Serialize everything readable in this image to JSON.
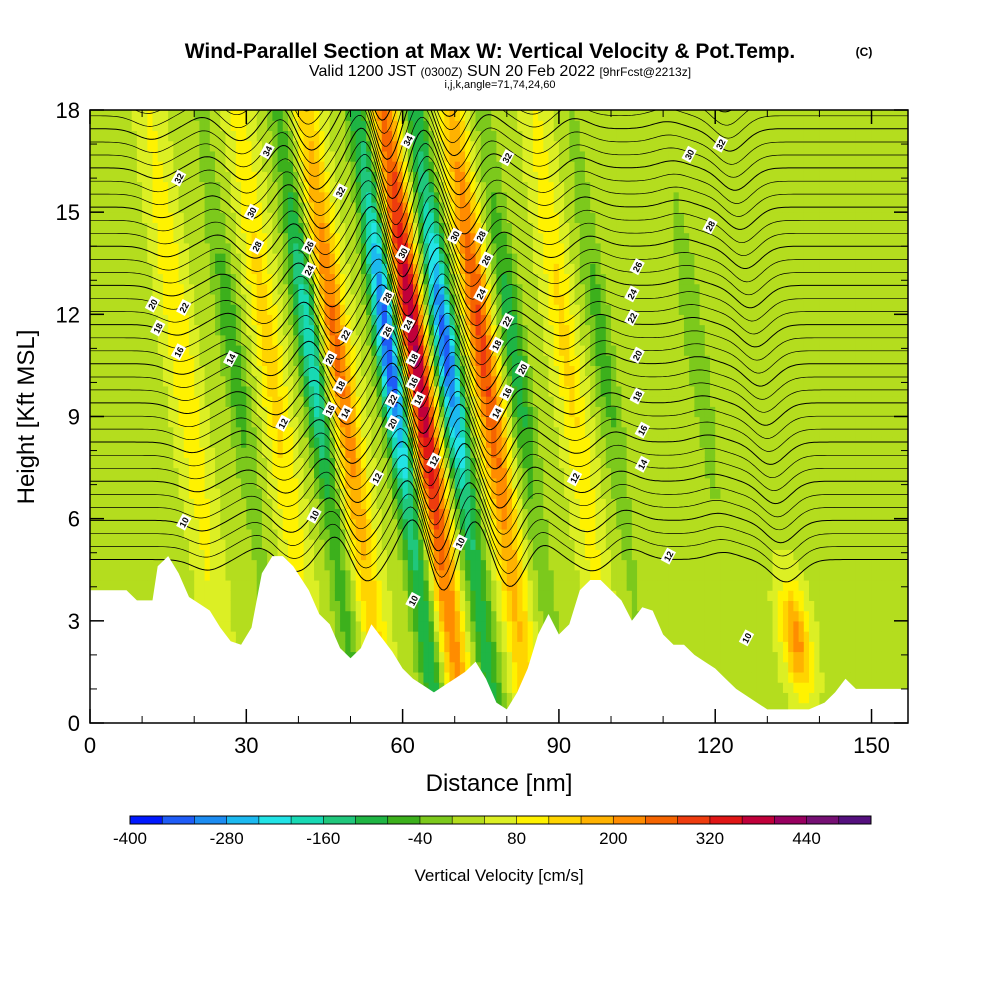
{
  "title": {
    "main": "Wind-Parallel Section at Max W: Vertical Velocity & Pot.Temp.",
    "mark": "(C)",
    "valid_a": "Valid 1200 JST",
    "valid_utc": "(0300Z)",
    "valid_b": "SUN 20 Feb 2022",
    "fcst": "[9hrFcst@2213z]",
    "params": "i,j,k,angle=71,74,24,60"
  },
  "chart_data": {
    "type": "heatmap",
    "x": {
      "label": "Distance [nm]",
      "range": [
        0,
        157
      ],
      "ticks": [
        0,
        30,
        60,
        90,
        120,
        150
      ]
    },
    "y": {
      "label": "Height [Kft MSL]",
      "range": [
        0,
        18
      ],
      "ticks": [
        0,
        3,
        6,
        9,
        12,
        15,
        18
      ]
    },
    "fill_variable": "Vertical Velocity [cm/s]",
    "colorbar": {
      "label": "Vertical Velocity [cm/s]",
      "tick_labels": [
        "-400",
        "-280",
        "-160",
        "-40",
        "80",
        "200",
        "320",
        "440"
      ],
      "tick_values": [
        -400,
        -280,
        -160,
        -40,
        80,
        200,
        320,
        440
      ],
      "levels": [
        -400,
        -360,
        -320,
        -280,
        -240,
        -200,
        -160,
        -120,
        -80,
        -40,
        0,
        40,
        80,
        120,
        160,
        200,
        240,
        280,
        320,
        360,
        400,
        440,
        480
      ],
      "colors": [
        "#0018ff",
        "#1f5cf7",
        "#1c8cf2",
        "#1cb9f0",
        "#22e3e6",
        "#18d9b4",
        "#20c77c",
        "#1fb544",
        "#3cb01c",
        "#7cc91c",
        "#b4dd1e",
        "#dcef24",
        "#fff200",
        "#ffd400",
        "#ffb200",
        "#ff8c00",
        "#f56400",
        "#ee3c0e",
        "#e01616",
        "#c0003a",
        "#980060",
        "#761074",
        "#55107e"
      ]
    },
    "contour_variable": "Potential temperature",
    "contour_levels": [
      10,
      12,
      14,
      16,
      18,
      20,
      22,
      24,
      26,
      28,
      30,
      32,
      34
    ],
    "updrafts": [
      {
        "x": 64,
        "peak": 380
      },
      {
        "x": 77,
        "peak": 260
      },
      {
        "x": 49,
        "peak": 220
      },
      {
        "x": 36,
        "peak": 110
      },
      {
        "x": 19,
        "peak": 90
      },
      {
        "x": 93,
        "peak": 100
      },
      {
        "x": 130,
        "peak": 190
      }
    ],
    "downdrafts": [
      {
        "x": 59,
        "peak": -400
      },
      {
        "x": 70,
        "peak": -370
      },
      {
        "x": 44,
        "peak": -230
      },
      {
        "x": 83,
        "peak": -140
      },
      {
        "x": 29,
        "peak": -100
      },
      {
        "x": 100,
        "peak": -90
      },
      {
        "x": 118,
        "peak": -60
      }
    ],
    "terrain_kft": [
      [
        0,
        3.9
      ],
      [
        7,
        3.9
      ],
      [
        9,
        3.6
      ],
      [
        12,
        3.6
      ],
      [
        13,
        4.6
      ],
      [
        15,
        4.9
      ],
      [
        17,
        4.4
      ],
      [
        19,
        3.7
      ],
      [
        21,
        3.5
      ],
      [
        23,
        3.3
      ],
      [
        25,
        2.8
      ],
      [
        27,
        2.4
      ],
      [
        29,
        2.3
      ],
      [
        31,
        2.8
      ],
      [
        33,
        4.4
      ],
      [
        35,
        4.9
      ],
      [
        37,
        4.9
      ],
      [
        39,
        4.6
      ],
      [
        42,
        3.9
      ],
      [
        44,
        3.2
      ],
      [
        46,
        2.9
      ],
      [
        48,
        2.2
      ],
      [
        50,
        1.9
      ],
      [
        52,
        2.2
      ],
      [
        54,
        2.9
      ],
      [
        56,
        2.5
      ],
      [
        58,
        2.1
      ],
      [
        60,
        1.6
      ],
      [
        62,
        1.3
      ],
      [
        64,
        1.1
      ],
      [
        66,
        0.9
      ],
      [
        68,
        1.1
      ],
      [
        70,
        1.3
      ],
      [
        72,
        1.5
      ],
      [
        74,
        1.8
      ],
      [
        76,
        1.3
      ],
      [
        78,
        0.6
      ],
      [
        80,
        0.4
      ],
      [
        82,
        0.9
      ],
      [
        84,
        1.6
      ],
      [
        86,
        2.6
      ],
      [
        88,
        3.2
      ],
      [
        90,
        2.6
      ],
      [
        92,
        2.9
      ],
      [
        94,
        3.9
      ],
      [
        96,
        4.2
      ],
      [
        98,
        4.2
      ],
      [
        100,
        3.9
      ],
      [
        102,
        3.6
      ],
      [
        104,
        3.0
      ],
      [
        106,
        3.4
      ],
      [
        108,
        3.3
      ],
      [
        110,
        2.6
      ],
      [
        112,
        2.3
      ],
      [
        114,
        2.3
      ],
      [
        116,
        2.0
      ],
      [
        118,
        1.8
      ],
      [
        120,
        1.6
      ],
      [
        122,
        1.3
      ],
      [
        124,
        1.0
      ],
      [
        126,
        0.8
      ],
      [
        128,
        0.6
      ],
      [
        130,
        0.4
      ],
      [
        134,
        0.4
      ],
      [
        138,
        0.4
      ],
      [
        141,
        0.6
      ],
      [
        143,
        0.9
      ],
      [
        145,
        1.3
      ],
      [
        147,
        1.0
      ],
      [
        150,
        1.0
      ],
      [
        157,
        1.0
      ]
    ],
    "contour_labels": [
      {
        "x": 34,
        "y": 16.8,
        "text": "34"
      },
      {
        "x": 17,
        "y": 16.0,
        "text": "32"
      },
      {
        "x": 31,
        "y": 15.0,
        "text": "30"
      },
      {
        "x": 32,
        "y": 14.0,
        "text": "28"
      },
      {
        "x": 42,
        "y": 14.0,
        "text": "26"
      },
      {
        "x": 42,
        "y": 13.3,
        "text": "24"
      },
      {
        "x": 48,
        "y": 15.6,
        "text": "32"
      },
      {
        "x": 12,
        "y": 12.3,
        "text": "20"
      },
      {
        "x": 18,
        "y": 12.2,
        "text": "22"
      },
      {
        "x": 13,
        "y": 11.6,
        "text": "18"
      },
      {
        "x": 17,
        "y": 10.9,
        "text": "16"
      },
      {
        "x": 27,
        "y": 10.7,
        "text": "14"
      },
      {
        "x": 46,
        "y": 10.7,
        "text": "20"
      },
      {
        "x": 49,
        "y": 11.4,
        "text": "22"
      },
      {
        "x": 48,
        "y": 9.9,
        "text": "18"
      },
      {
        "x": 46,
        "y": 9.2,
        "text": "16"
      },
      {
        "x": 49,
        "y": 9.1,
        "text": "14"
      },
      {
        "x": 37,
        "y": 8.8,
        "text": "12"
      },
      {
        "x": 43,
        "y": 6.1,
        "text": "10"
      },
      {
        "x": 18,
        "y": 5.9,
        "text": "10"
      },
      {
        "x": 61,
        "y": 17.1,
        "text": "34"
      },
      {
        "x": 60,
        "y": 13.8,
        "text": "30"
      },
      {
        "x": 57,
        "y": 12.5,
        "text": "28"
      },
      {
        "x": 57,
        "y": 11.5,
        "text": "26"
      },
      {
        "x": 61,
        "y": 11.7,
        "text": "24"
      },
      {
        "x": 62,
        "y": 10.7,
        "text": "18"
      },
      {
        "x": 62,
        "y": 10.0,
        "text": "16"
      },
      {
        "x": 58,
        "y": 9.5,
        "text": "22"
      },
      {
        "x": 58,
        "y": 8.8,
        "text": "20"
      },
      {
        "x": 63,
        "y": 9.5,
        "text": "14"
      },
      {
        "x": 55,
        "y": 7.2,
        "text": "12"
      },
      {
        "x": 66,
        "y": 7.7,
        "text": "12"
      },
      {
        "x": 62,
        "y": 3.6,
        "text": "10"
      },
      {
        "x": 71,
        "y": 5.3,
        "text": "10"
      },
      {
        "x": 70,
        "y": 14.3,
        "text": "30"
      },
      {
        "x": 75,
        "y": 14.3,
        "text": "28"
      },
      {
        "x": 76,
        "y": 13.6,
        "text": "26"
      },
      {
        "x": 75,
        "y": 12.6,
        "text": "24"
      },
      {
        "x": 80,
        "y": 11.8,
        "text": "22"
      },
      {
        "x": 78,
        "y": 11.1,
        "text": "18"
      },
      {
        "x": 83,
        "y": 10.4,
        "text": "20"
      },
      {
        "x": 80,
        "y": 9.7,
        "text": "16"
      },
      {
        "x": 78,
        "y": 9.1,
        "text": "14"
      },
      {
        "x": 80,
        "y": 16.6,
        "text": "32"
      },
      {
        "x": 93,
        "y": 7.2,
        "text": "12"
      },
      {
        "x": 115,
        "y": 16.7,
        "text": "30"
      },
      {
        "x": 121,
        "y": 17.0,
        "text": "32"
      },
      {
        "x": 119,
        "y": 14.6,
        "text": "28"
      },
      {
        "x": 105,
        "y": 13.4,
        "text": "26"
      },
      {
        "x": 104,
        "y": 12.6,
        "text": "24"
      },
      {
        "x": 104,
        "y": 11.9,
        "text": "22"
      },
      {
        "x": 105,
        "y": 10.8,
        "text": "20"
      },
      {
        "x": 105,
        "y": 9.6,
        "text": "18"
      },
      {
        "x": 106,
        "y": 8.6,
        "text": "16"
      },
      {
        "x": 106,
        "y": 7.6,
        "text": "14"
      },
      {
        "x": 111,
        "y": 4.9,
        "text": "12"
      },
      {
        "x": 126,
        "y": 2.5,
        "text": "10"
      }
    ]
  }
}
